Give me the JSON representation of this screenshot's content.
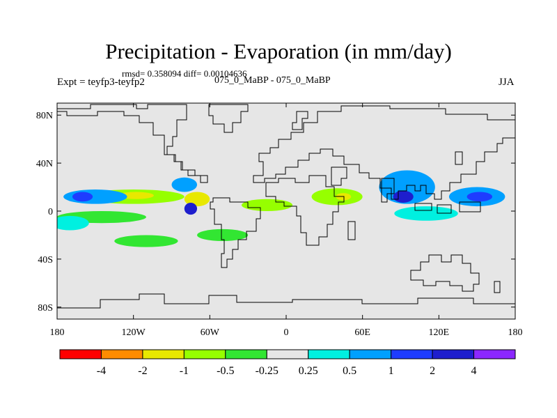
{
  "title": "Precipitation - Evaporation (in mm/day)",
  "stats": "rmsd= 0.358094 diff= 0.00104636",
  "expt_label": "Expt = teyfp3-teyfp2",
  "experiment_pair": "075_0_MaBP - 075_0_MaBP",
  "season": "JJA",
  "colors": {
    "background_field": "#e6e6e6",
    "coastline": "#000000",
    "bins": [
      "#ff0000",
      "#ff8c00",
      "#e8e800",
      "#96ff00",
      "#32e632",
      "#e6e6e6",
      "#00f0e0",
      "#00a0ff",
      "#1e3cff",
      "#1e1ecd",
      "#8c28ff"
    ]
  },
  "chart_data": {
    "type": "heatmap",
    "title": "Precipitation - Evaporation (in mm/day)",
    "subtitle": "rmsd= 0.358094 diff= 0.00104636",
    "units": "mm/day",
    "xlim": [
      -180,
      180
    ],
    "ylim": [
      -90,
      90
    ],
    "x_ticks": [
      {
        "value": -180,
        "label": "180"
      },
      {
        "value": -120,
        "label": "120W"
      },
      {
        "value": -60,
        "label": "60W"
      },
      {
        "value": 0,
        "label": "0"
      },
      {
        "value": 60,
        "label": "60E"
      },
      {
        "value": 120,
        "label": "120E"
      },
      {
        "value": 180,
        "label": "180"
      }
    ],
    "y_ticks": [
      {
        "value": 80,
        "label": "80N"
      },
      {
        "value": 40,
        "label": "40N"
      },
      {
        "value": 0,
        "label": "0"
      },
      {
        "value": -40,
        "label": "40S"
      },
      {
        "value": -80,
        "label": "80S"
      }
    ],
    "colorbar": {
      "labels": [
        "-4",
        "-2",
        "-1",
        "-0.5",
        "-0.25",
        "0.25",
        "0.5",
        "1",
        "2",
        "4"
      ],
      "bin_colors": [
        "#ff0000",
        "#ff8c00",
        "#e8e800",
        "#96ff00",
        "#32e632",
        "#e6e6e6",
        "#00f0e0",
        "#00a0ff",
        "#1e3cff",
        "#1e1ecd",
        "#8c28ff"
      ]
    },
    "regions": [
      {
        "lon": -120,
        "lat": 12,
        "rx": 40,
        "ry": 6,
        "value": -0.75
      },
      {
        "lon": -118,
        "lat": 13,
        "rx": 14,
        "ry": 3,
        "value": -1.5
      },
      {
        "lon": -70,
        "lat": 10,
        "rx": 10,
        "ry": 6,
        "value": -1.5
      },
      {
        "lon": -15,
        "lat": 5,
        "rx": 20,
        "ry": 5,
        "value": -0.75
      },
      {
        "lon": 40,
        "lat": 12,
        "rx": 20,
        "ry": 7,
        "value": -0.75
      },
      {
        "lon": 45,
        "lat": 12,
        "rx": 6,
        "ry": 3,
        "value": -1.5
      },
      {
        "lon": -145,
        "lat": -5,
        "rx": 35,
        "ry": 5,
        "value": -0.5
      },
      {
        "lon": -50,
        "lat": -20,
        "rx": 20,
        "ry": 5,
        "value": -0.5
      },
      {
        "lon": -110,
        "lat": -25,
        "rx": 25,
        "ry": 5,
        "value": -0.5
      },
      {
        "lon": -150,
        "lat": 12,
        "rx": 25,
        "ry": 6,
        "value": 0.75
      },
      {
        "lon": -160,
        "lat": 12,
        "rx": 8,
        "ry": 4,
        "value": 1.5
      },
      {
        "lon": -80,
        "lat": 22,
        "rx": 10,
        "ry": 6,
        "value": 0.75
      },
      {
        "lon": 95,
        "lat": 20,
        "rx": 22,
        "ry": 14,
        "value": 0.75
      },
      {
        "lon": 92,
        "lat": 12,
        "rx": 8,
        "ry": 5,
        "value": 3
      },
      {
        "lon": 150,
        "lat": 12,
        "rx": 22,
        "ry": 8,
        "value": 0.75
      },
      {
        "lon": 152,
        "lat": 12,
        "rx": 10,
        "ry": 4,
        "value": 1.5
      },
      {
        "lon": -75,
        "lat": 2,
        "rx": 5,
        "ry": 5,
        "value": 3
      },
      {
        "lon": 110,
        "lat": -2,
        "rx": 25,
        "ry": 6,
        "value": 0.4
      },
      {
        "lon": -170,
        "lat": -10,
        "rx": 15,
        "ry": 6,
        "value": 0.4
      }
    ]
  }
}
